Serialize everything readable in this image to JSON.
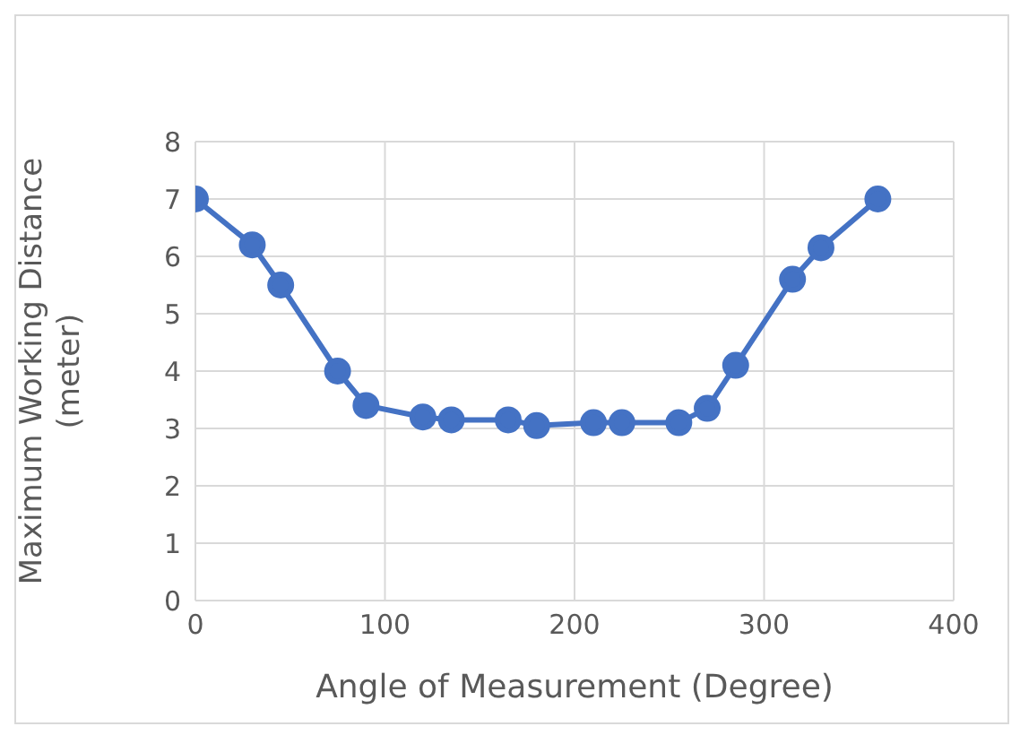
{
  "chart_data": {
    "type": "line",
    "xlabel": "Angle of Measurement (Degree)",
    "ylabel": "Maximum Working Distance\n(meter)",
    "x": [
      0,
      30,
      45,
      75,
      90,
      120,
      135,
      165,
      180,
      210,
      225,
      255,
      270,
      285,
      315,
      330,
      360
    ],
    "series": [
      {
        "color": "#4472c4",
        "values": [
          7.0,
          6.2,
          5.5,
          4.0,
          3.4,
          3.2,
          3.15,
          3.15,
          3.05,
          3.1,
          3.1,
          3.1,
          3.35,
          4.1,
          5.6,
          6.15,
          7.0
        ]
      }
    ],
    "xlim": [
      0,
      400
    ],
    "xticks": [
      0,
      100,
      200,
      300,
      400
    ],
    "ylim": [
      0,
      8
    ],
    "yticks": [
      0,
      1,
      2,
      3,
      4,
      5,
      6,
      7,
      8
    ],
    "grid": true,
    "marker": "circle",
    "line_style": "solid"
  }
}
